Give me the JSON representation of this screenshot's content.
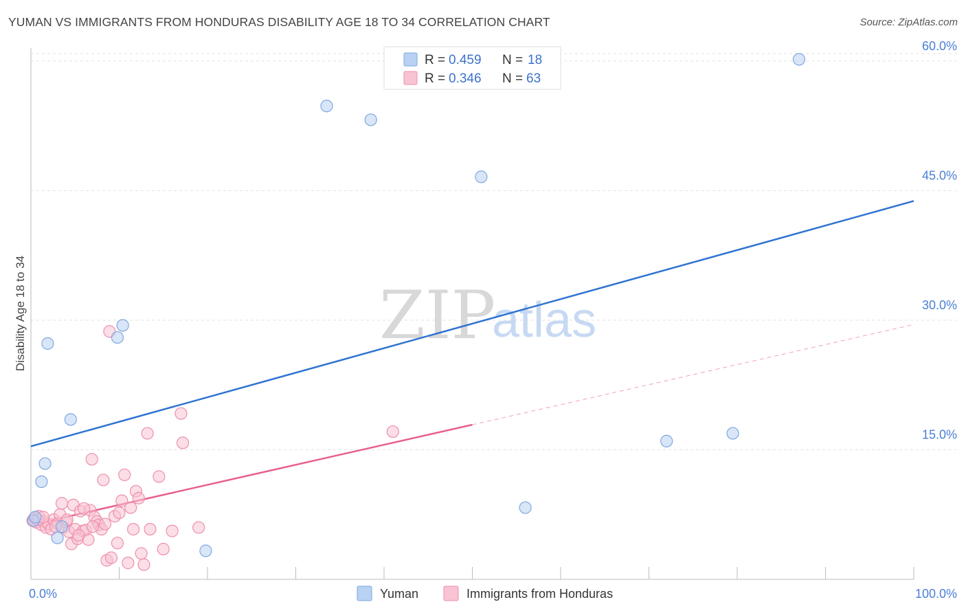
{
  "header": {
    "title": "YUMAN VS IMMIGRANTS FROM HONDURAS DISABILITY AGE 18 TO 34 CORRELATION CHART",
    "source": "Source: ZipAtlas.com"
  },
  "watermark": {
    "zip": "ZIP",
    "atlas": "atlas"
  },
  "legend": {
    "rows": [
      {
        "r_label": "R = ",
        "r_value": "0.459",
        "n_label": "N = ",
        "n_value": "18"
      },
      {
        "r_label": "R = ",
        "r_value": "0.346",
        "n_label": "N = ",
        "n_value": "63"
      }
    ]
  },
  "bottom_legend": {
    "series1": "Yuman",
    "series2": "Immigrants from Honduras"
  },
  "colors": {
    "blue_fill": "#b9d1f2",
    "blue_stroke": "#7fa7df",
    "blue_line": "#2e73d0",
    "pink_fill": "#f8c3d2",
    "pink_stroke": "#ee8fac",
    "pink_line": "#e8608c",
    "tick_text": "#4a7fd4",
    "grid": "#e2e2e2"
  },
  "chart_data": {
    "type": "scatter",
    "title": "YUMAN VS IMMIGRANTS FROM HONDURAS DISABILITY AGE 18 TO 34 CORRELATION CHART",
    "xlabel": "",
    "ylabel": "Disability Age 18 to 34",
    "xlim": [
      0,
      100
    ],
    "ylim": [
      0,
      61.5
    ],
    "x_tick_labels": [
      "0.0%",
      "100.0%"
    ],
    "y_ticks": [
      15,
      30,
      45,
      60
    ],
    "y_tick_labels": [
      "15.0%",
      "30.0%",
      "45.0%",
      "60.0%"
    ],
    "grid": true,
    "legend_placement": "top-center",
    "series": [
      {
        "name": "Yuman",
        "r": 0.459,
        "n": 18,
        "points": [
          [
            0.3,
            6.8
          ],
          [
            0.5,
            7.2
          ],
          [
            1.2,
            11.3
          ],
          [
            1.6,
            13.4
          ],
          [
            1.9,
            27.3
          ],
          [
            3.0,
            4.8
          ],
          [
            3.5,
            6.1
          ],
          [
            4.5,
            18.5
          ],
          [
            9.8,
            28.0
          ],
          [
            10.4,
            29.4
          ],
          [
            19.8,
            3.3
          ],
          [
            33.5,
            54.8
          ],
          [
            38.5,
            53.2
          ],
          [
            51.0,
            46.6
          ],
          [
            56.0,
            8.3
          ],
          [
            72.0,
            16.0
          ],
          [
            79.5,
            16.9
          ],
          [
            87.0,
            60.2
          ]
        ],
        "trend": {
          "x": [
            0,
            100
          ],
          "y": [
            15.4,
            43.8
          ],
          "dashed_from": null
        }
      },
      {
        "name": "Immigrants from Honduras",
        "r": 0.346,
        "n": 63,
        "points": [
          [
            0.2,
            6.8
          ],
          [
            0.4,
            7.1
          ],
          [
            0.6,
            6.6
          ],
          [
            0.9,
            7.3
          ],
          [
            1.2,
            6.3
          ],
          [
            1.5,
            6.7
          ],
          [
            1.7,
            6.0
          ],
          [
            2.0,
            6.4
          ],
          [
            2.3,
            5.8
          ],
          [
            2.6,
            6.9
          ],
          [
            3.0,
            6.5
          ],
          [
            3.3,
            7.5
          ],
          [
            3.5,
            8.8
          ],
          [
            3.7,
            6.0
          ],
          [
            4.0,
            6.6
          ],
          [
            4.3,
            5.5
          ],
          [
            4.6,
            4.1
          ],
          [
            4.8,
            8.6
          ],
          [
            5.0,
            5.8
          ],
          [
            5.3,
            4.7
          ],
          [
            5.6,
            7.9
          ],
          [
            5.9,
            5.6
          ],
          [
            6.2,
            5.7
          ],
          [
            6.5,
            4.6
          ],
          [
            6.7,
            8.0
          ],
          [
            6.9,
            13.9
          ],
          [
            7.2,
            7.2
          ],
          [
            7.5,
            6.7
          ],
          [
            7.7,
            6.3
          ],
          [
            8.0,
            5.8
          ],
          [
            8.2,
            11.5
          ],
          [
            8.4,
            6.4
          ],
          [
            8.6,
            2.2
          ],
          [
            8.9,
            28.7
          ],
          [
            9.1,
            2.5
          ],
          [
            9.5,
            7.3
          ],
          [
            9.8,
            4.2
          ],
          [
            10.3,
            9.1
          ],
          [
            10.6,
            12.1
          ],
          [
            11.0,
            1.9
          ],
          [
            11.3,
            8.3
          ],
          [
            11.6,
            5.8
          ],
          [
            11.9,
            10.2
          ],
          [
            12.2,
            9.4
          ],
          [
            12.5,
            3.0
          ],
          [
            12.8,
            1.7
          ],
          [
            13.2,
            16.9
          ],
          [
            13.5,
            5.8
          ],
          [
            14.5,
            11.9
          ],
          [
            15.0,
            3.5
          ],
          [
            16.0,
            5.6
          ],
          [
            17.0,
            19.2
          ],
          [
            17.2,
            15.8
          ],
          [
            19.0,
            6.0
          ],
          [
            41.0,
            17.1
          ],
          [
            0.8,
            6.9
          ],
          [
            1.4,
            7.2
          ],
          [
            2.8,
            6.1
          ],
          [
            4.1,
            6.9
          ],
          [
            5.4,
            5.1
          ],
          [
            6.0,
            8.2
          ],
          [
            7.0,
            6.1
          ],
          [
            10.0,
            7.7
          ]
        ],
        "trend": {
          "x": [
            0,
            100
          ],
          "y": [
            6.3,
            29.5
          ],
          "dashed_from": 50
        }
      }
    ]
  }
}
